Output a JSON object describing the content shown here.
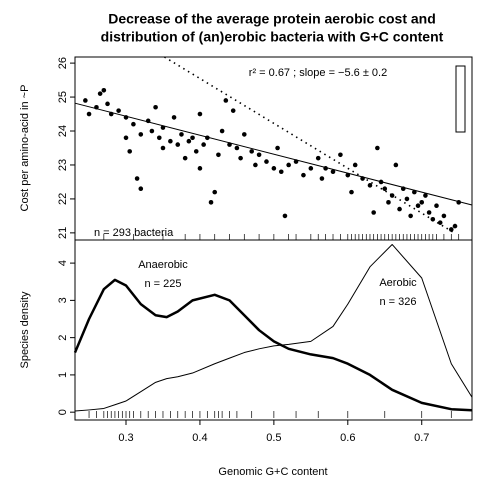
{
  "chart_data": [
    {
      "type": "scatter",
      "title": "Decrease of the average protein aerobic cost and",
      "subtitle": "distribution of (an)erobic bacteria with G+C content",
      "y_label": "Cost per amino-acid in ~P",
      "annotations": [
        "r² =  0.67 ; slope = −5.6 ± 0.2",
        "n = 293 bacteria"
      ],
      "color": "#000000",
      "x": [
        0.245,
        0.25,
        0.26,
        0.265,
        0.27,
        0.275,
        0.28,
        0.29,
        0.3,
        0.3,
        0.305,
        0.31,
        0.315,
        0.32,
        0.32,
        0.33,
        0.335,
        0.34,
        0.345,
        0.35,
        0.35,
        0.36,
        0.365,
        0.37,
        0.375,
        0.38,
        0.385,
        0.39,
        0.395,
        0.4,
        0.4,
        0.405,
        0.41,
        0.415,
        0.42,
        0.425,
        0.43,
        0.435,
        0.44,
        0.445,
        0.45,
        0.455,
        0.46,
        0.47,
        0.475,
        0.48,
        0.49,
        0.5,
        0.505,
        0.51,
        0.515,
        0.52,
        0.53,
        0.54,
        0.55,
        0.56,
        0.565,
        0.57,
        0.58,
        0.59,
        0.6,
        0.605,
        0.61,
        0.62,
        0.63,
        0.635,
        0.64,
        0.645,
        0.65,
        0.655,
        0.66,
        0.665,
        0.67,
        0.675,
        0.68,
        0.685,
        0.69,
        0.695,
        0.7,
        0.705,
        0.71,
        0.715,
        0.72,
        0.725,
        0.73,
        0.74,
        0.745,
        0.75
      ],
      "values": [
        24.9,
        24.5,
        24.7,
        25.1,
        25.2,
        24.8,
        24.5,
        24.6,
        24.4,
        23.8,
        23.4,
        24.2,
        22.6,
        23.9,
        22.3,
        24.3,
        24.0,
        24.7,
        23.8,
        24.1,
        23.5,
        23.7,
        24.4,
        23.6,
        23.9,
        23.2,
        23.7,
        23.8,
        23.4,
        22.9,
        24.5,
        23.6,
        23.8,
        21.9,
        22.2,
        23.3,
        24.0,
        24.9,
        23.6,
        24.6,
        23.5,
        23.2,
        23.9,
        23.4,
        23.0,
        23.3,
        23.1,
        22.9,
        23.5,
        22.8,
        21.5,
        23.0,
        23.1,
        22.7,
        22.9,
        23.2,
        22.6,
        22.9,
        22.8,
        23.3,
        22.7,
        22.2,
        23.0,
        22.6,
        22.4,
        21.6,
        23.5,
        22.5,
        22.3,
        21.9,
        22.1,
        23.0,
        21.7,
        22.3,
        22.0,
        21.5,
        22.2,
        21.8,
        21.9,
        22.1,
        21.6,
        21.4,
        21.8,
        21.3,
        21.5,
        21.1,
        21.2,
        21.9
      ],
      "lines": [
        {
          "x": [
            0.231,
            0.768
          ],
          "values": [
            24.82,
            21.82
          ],
          "dashed": false
        },
        {
          "x": [
            0.352,
            0.744
          ],
          "values": [
            26.18,
            21.0
          ],
          "dashed": true
        }
      ],
      "rug": [
        0.27,
        0.31,
        0.35,
        0.38,
        0.4,
        0.42,
        0.44,
        0.46,
        0.48,
        0.5,
        0.52,
        0.53,
        0.55,
        0.56,
        0.57,
        0.58,
        0.59,
        0.6,
        0.605,
        0.61,
        0.615,
        0.62,
        0.625,
        0.63,
        0.635,
        0.64,
        0.645,
        0.65,
        0.655,
        0.66,
        0.665,
        0.67,
        0.675,
        0.68,
        0.685,
        0.69,
        0.695,
        0.7,
        0.705,
        0.71,
        0.715,
        0.72,
        0.73,
        0.74,
        0.75
      ],
      "xlim": [
        0.231,
        0.768
      ],
      "ylim": [
        20.79,
        26.18
      ],
      "yticks": [
        21,
        22,
        23,
        24,
        25,
        26
      ]
    },
    {
      "type": "line",
      "x_label": "Genomic G+C content",
      "y_label": "Species density",
      "x": [
        0.231,
        0.25,
        0.27,
        0.285,
        0.3,
        0.32,
        0.34,
        0.355,
        0.37,
        0.39,
        0.42,
        0.44,
        0.46,
        0.48,
        0.5,
        0.52,
        0.55,
        0.58,
        0.6,
        0.63,
        0.66,
        0.7,
        0.74,
        0.768
      ],
      "series": [
        {
          "name": "Anaerobic",
          "count_label": "n = 225",
          "width": 2.5,
          "color": "#000000",
          "values": [
            1.6,
            2.5,
            3.3,
            3.55,
            3.4,
            2.9,
            2.6,
            2.55,
            2.7,
            3.0,
            3.15,
            3.0,
            2.6,
            2.2,
            1.9,
            1.7,
            1.55,
            1.45,
            1.3,
            1.0,
            0.6,
            0.25,
            0.08,
            0.05
          ]
        },
        {
          "name": "Aerobic",
          "count_label": "n = 326",
          "width": 1,
          "color": "#000000",
          "values": [
            0.03,
            0.06,
            0.1,
            0.2,
            0.3,
            0.55,
            0.8,
            0.9,
            0.95,
            1.05,
            1.3,
            1.45,
            1.6,
            1.7,
            1.78,
            1.82,
            1.9,
            2.3,
            2.9,
            3.9,
            4.5,
            3.6,
            1.3,
            0.4
          ]
        }
      ],
      "rug": [
        0.25,
        0.26,
        0.27,
        0.275,
        0.28,
        0.285,
        0.29,
        0.295,
        0.3,
        0.305,
        0.31,
        0.32,
        0.33,
        0.34,
        0.35,
        0.36,
        0.37,
        0.38,
        0.39,
        0.4,
        0.41,
        0.42,
        0.425,
        0.43,
        0.44,
        0.45,
        0.47,
        0.5,
        0.53,
        0.56,
        0.6,
        0.65,
        0.7,
        0.74
      ],
      "xlim": [
        0.231,
        0.768
      ],
      "ylim": [
        -0.21,
        4.62
      ],
      "xticks": [
        0.3,
        0.4,
        0.5,
        0.6,
        0.7
      ],
      "yticks": [
        0,
        1,
        2,
        3,
        4
      ]
    }
  ]
}
